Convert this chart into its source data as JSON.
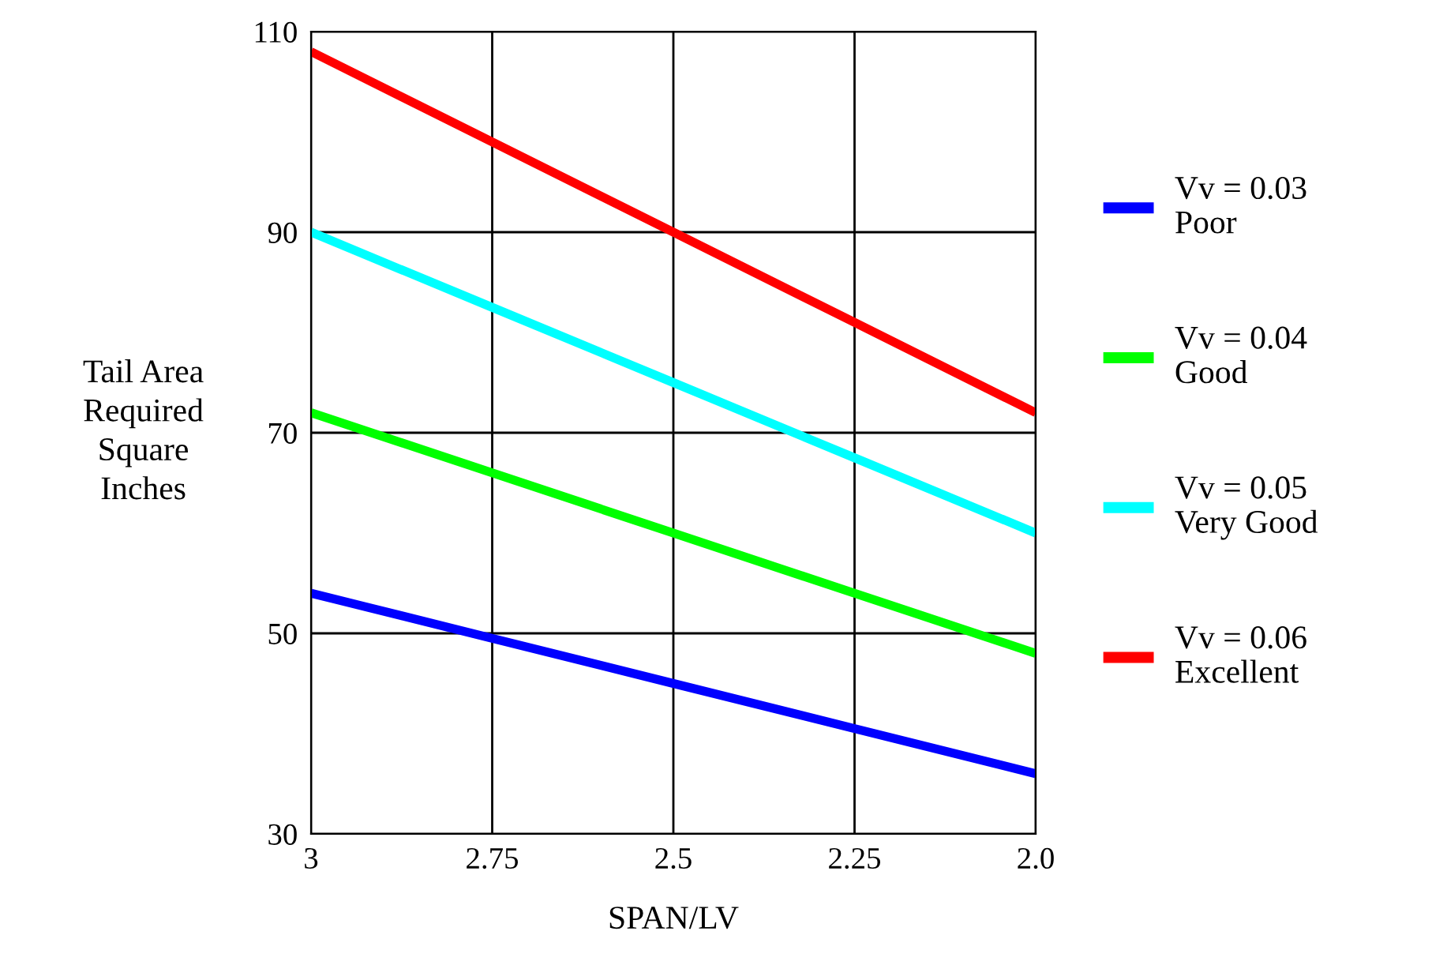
{
  "chart_data": {
    "type": "line",
    "xlabel": "SPAN/LV",
    "ylabel": "Tail Area\nRequired\nSquare\nInches",
    "x": [
      3,
      2.75,
      2.5,
      2.25,
      2.0
    ],
    "series": [
      {
        "name": "Vv = 0.03\nPoor",
        "color": "#0000ff",
        "values": [
          54,
          49.5,
          45,
          40.5,
          36
        ]
      },
      {
        "name": "Vv = 0.04\nGood",
        "color": "#00ff00",
        "values": [
          72,
          66,
          60,
          54,
          48
        ]
      },
      {
        "name": "Vv = 0.05\nVery Good",
        "color": "#00ffff",
        "values": [
          90,
          82.5,
          75,
          67.5,
          60
        ]
      },
      {
        "name": "Vv = 0.06\nExcellent",
        "color": "#ff0000",
        "values": [
          108,
          99,
          90,
          81,
          72
        ]
      }
    ],
    "xlim": [
      3,
      2.0
    ],
    "xticks": [
      3,
      2.75,
      2.5,
      2.25,
      {
        "value": 2.0,
        "label": "2.0"
      }
    ],
    "ylim": [
      30,
      110
    ],
    "yticks": [
      30,
      50,
      70,
      90,
      110
    ],
    "grid": true,
    "legend": "right",
    "marker": "none",
    "line_style": "solid"
  }
}
